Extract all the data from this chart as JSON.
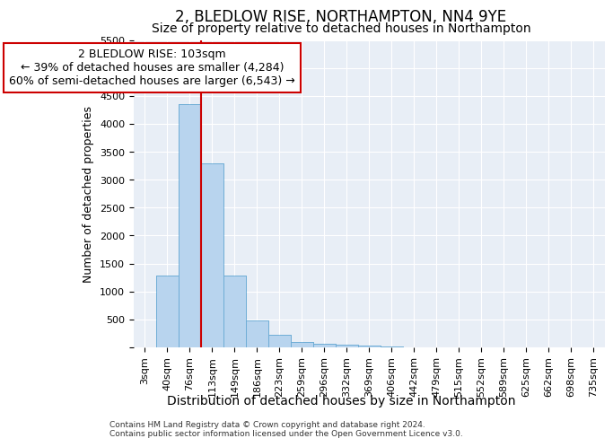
{
  "title": "2, BLEDLOW RISE, NORTHAMPTON, NN4 9YE",
  "subtitle": "Size of property relative to detached houses in Northampton",
  "xlabel": "Distribution of detached houses by size in Northampton",
  "ylabel": "Number of detached properties",
  "footnote1": "Contains HM Land Registry data © Crown copyright and database right 2024.",
  "footnote2": "Contains public sector information licensed under the Open Government Licence v3.0.",
  "bin_labels": [
    "3sqm",
    "40sqm",
    "76sqm",
    "113sqm",
    "149sqm",
    "186sqm",
    "223sqm",
    "259sqm",
    "296sqm",
    "332sqm",
    "369sqm",
    "406sqm",
    "442sqm",
    "479sqm",
    "515sqm",
    "552sqm",
    "589sqm",
    "625sqm",
    "662sqm",
    "698sqm",
    "735sqm"
  ],
  "bar_values": [
    0,
    1280,
    4350,
    3300,
    1280,
    480,
    230,
    90,
    60,
    50,
    30,
    10,
    5,
    3,
    2,
    1,
    1,
    0,
    0,
    0,
    0
  ],
  "bar_color": "#b8d4ee",
  "bar_edge_color": "#6aaad4",
  "background_color": "#e8eef6",
  "grid_color": "#ffffff",
  "vline_color": "#cc0000",
  "vline_x": 2.5,
  "annotation_line1": "2 BLEDLOW RISE: 103sqm",
  "annotation_line2": "← 39% of detached houses are smaller (4,284)",
  "annotation_line3": "60% of semi-detached houses are larger (6,543) →",
  "annotation_box_facecolor": "#ffffff",
  "annotation_box_edgecolor": "#cc0000",
  "ylim": [
    0,
    5500
  ],
  "yticks": [
    0,
    500,
    1000,
    1500,
    2000,
    2500,
    3000,
    3500,
    4000,
    4500,
    5000,
    5500
  ],
  "title_fontsize": 12,
  "subtitle_fontsize": 10,
  "ylabel_fontsize": 9,
  "xlabel_fontsize": 10,
  "tick_fontsize": 8,
  "annot_fontsize": 9,
  "footnote_fontsize": 6.5
}
